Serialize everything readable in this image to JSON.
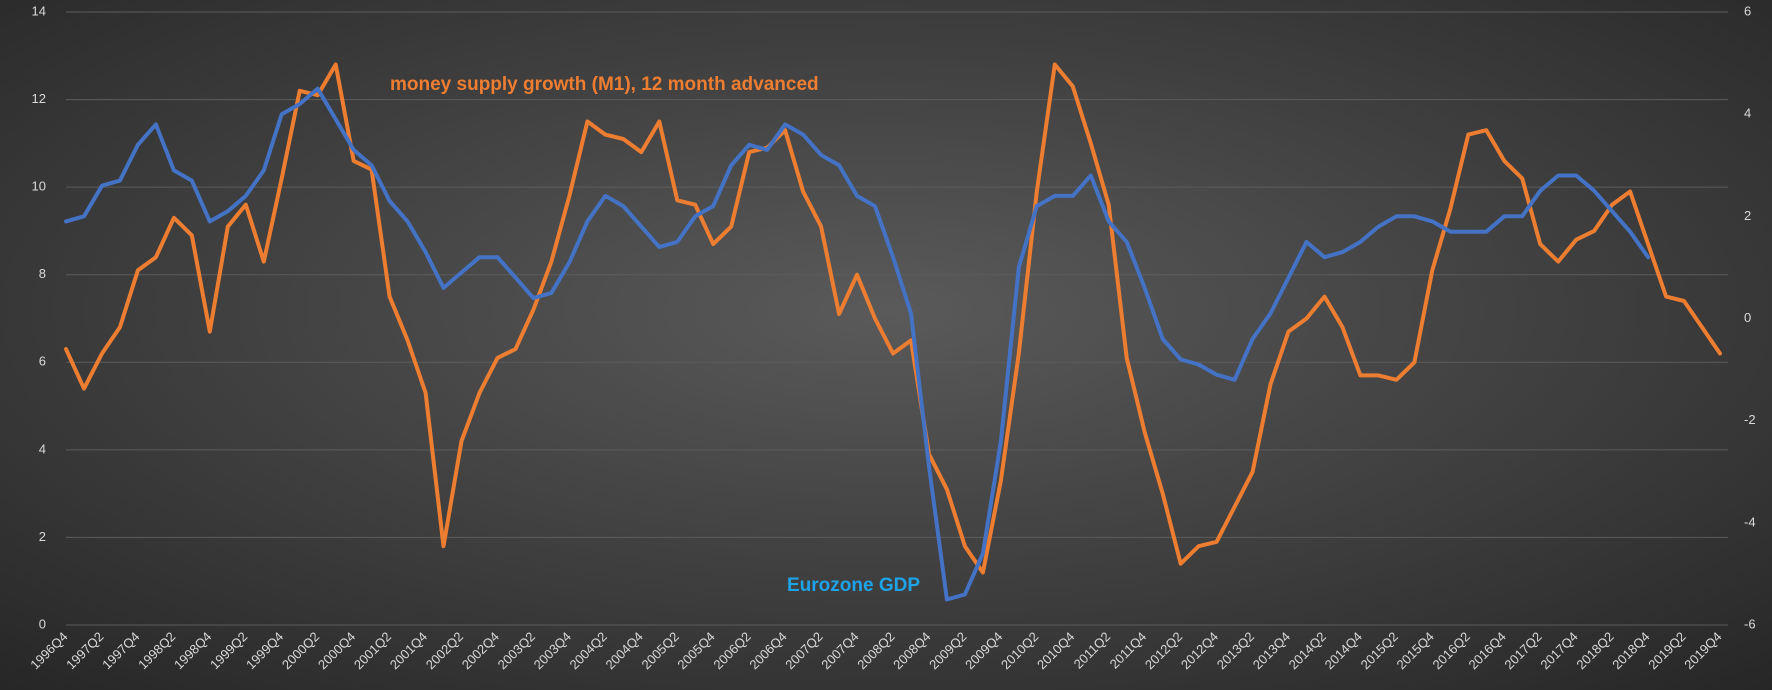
{
  "chart_data": {
    "type": "line",
    "categories": [
      "1996Q4",
      null,
      "1997Q2",
      null,
      "1997Q4",
      null,
      "1998Q2",
      null,
      "1998Q4",
      null,
      "1999Q2",
      null,
      "1999Q4",
      null,
      "2000Q2",
      null,
      "2000Q4",
      null,
      "2001Q2",
      null,
      "2001Q4",
      null,
      "2002Q2",
      null,
      "2002Q4",
      null,
      "2003Q2",
      null,
      "2003Q4",
      null,
      "2004Q2",
      null,
      "2004Q4",
      null,
      "2005Q2",
      null,
      "2005Q4",
      null,
      "2006Q2",
      null,
      "2006Q4",
      null,
      "2007Q2",
      null,
      "2007Q4",
      null,
      "2008Q2",
      null,
      "2008Q4",
      null,
      "2009Q2",
      null,
      "2009Q4",
      null,
      "2010Q2",
      null,
      "2010Q4",
      null,
      "2011Q2",
      null,
      "2011Q4",
      null,
      "2012Q2",
      null,
      "2012Q4",
      null,
      "2013Q2",
      null,
      "2013Q4",
      null,
      "2014Q2",
      null,
      "2014Q4",
      null,
      "2015Q2",
      null,
      "2015Q4",
      null,
      "2016Q2",
      null,
      "2016Q4",
      null,
      "2017Q2",
      null,
      "2017Q4",
      null,
      "2018Q2",
      null,
      "2018Q4",
      null,
      "2019Q2",
      null,
      "2019Q4"
    ],
    "series": [
      {
        "name": "money supply growth (M1), 12 month advanced",
        "color": "#ed7d31",
        "axis": "y",
        "values": [
          6.3,
          5.4,
          6.2,
          6.8,
          8.1,
          8.4,
          9.3,
          8.9,
          6.7,
          9.1,
          9.6,
          8.3,
          10.2,
          12.2,
          12.1,
          12.8,
          10.6,
          10.4,
          7.5,
          6.5,
          5.3,
          1.8,
          4.2,
          5.3,
          6.1,
          6.3,
          7.2,
          8.3,
          9.8,
          11.5,
          11.2,
          11.1,
          10.8,
          11.5,
          9.7,
          9.6,
          8.7,
          9.1,
          10.8,
          10.9,
          11.3,
          9.9,
          9.1,
          7.1,
          8.0,
          7.0,
          6.2,
          6.5,
          3.9,
          3.1,
          1.8,
          1.2,
          3.3,
          6.2,
          9.9,
          12.8,
          12.3,
          11.0,
          9.6,
          6.1,
          4.4,
          3.0,
          1.4,
          1.8,
          1.9,
          2.7,
          3.5,
          5.5,
          6.7,
          7.0,
          7.5,
          6.8,
          5.7,
          5.7,
          5.6,
          6.0,
          8.1,
          9.5,
          11.2,
          11.3,
          10.6,
          10.2,
          8.7,
          8.3,
          8.8,
          9.0,
          9.6,
          9.9,
          8.7,
          7.5,
          7.4,
          6.8,
          6.2
        ]
      },
      {
        "name": "Eurozone GDP",
        "color": "#4472c4",
        "axis": "y2",
        "values": [
          1.9,
          2.0,
          2.6,
          2.7,
          3.4,
          3.8,
          2.9,
          2.7,
          1.9,
          2.1,
          2.4,
          2.9,
          4.0,
          4.2,
          4.5,
          3.9,
          3.3,
          3.0,
          2.3,
          1.9,
          1.3,
          0.6,
          0.9,
          1.2,
          1.2,
          0.8,
          0.4,
          0.5,
          1.1,
          1.9,
          2.4,
          2.2,
          1.8,
          1.4,
          1.5,
          2.0,
          2.2,
          3.0,
          3.4,
          3.3,
          3.8,
          3.6,
          3.2,
          3.0,
          2.4,
          2.2,
          1.2,
          0.1,
          -2.9,
          -5.5,
          -5.4,
          -4.6,
          -2.4,
          1.0,
          2.2,
          2.4,
          2.4,
          2.8,
          1.9,
          1.5,
          0.6,
          -0.4,
          -0.8,
          -0.9,
          -1.1,
          -1.2,
          -0.4,
          0.1,
          0.8,
          1.5,
          1.2,
          1.3,
          1.5,
          1.8,
          2.0,
          2.0,
          1.9,
          1.7,
          1.7,
          1.7,
          2.0,
          2.0,
          2.5,
          2.8,
          2.8,
          2.5,
          2.1,
          1.7,
          1.2,
          null,
          null,
          null,
          null
        ]
      }
    ],
    "ylim": [
      0,
      14
    ],
    "yticks": [
      0,
      2,
      4,
      6,
      8,
      10,
      12,
      14
    ],
    "y2lim": [
      -6,
      6
    ],
    "y2ticks": [
      -6,
      -4,
      -2,
      0,
      2,
      4,
      6
    ],
    "grid": true
  }
}
